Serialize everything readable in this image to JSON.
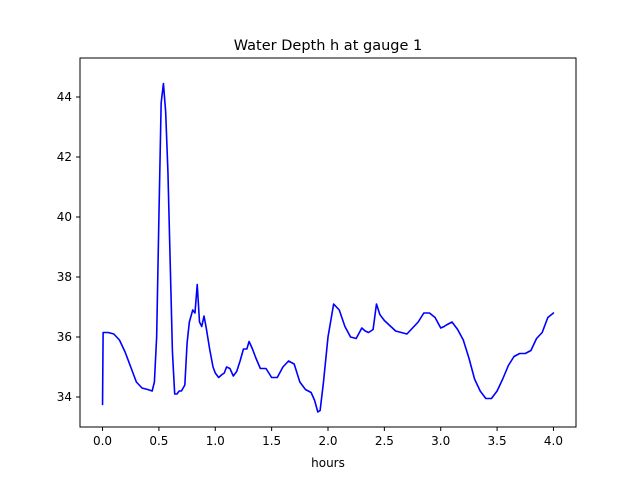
{
  "chart_data": {
    "type": "line",
    "title": "Water Depth h at gauge 1",
    "xlabel": "hours",
    "ylabel": "",
    "xlim": [
      -0.2,
      4.2
    ],
    "ylim": [
      33.0,
      45.3
    ],
    "xticks": [
      0.0,
      0.5,
      1.0,
      1.5,
      2.0,
      2.5,
      3.0,
      3.5,
      4.0
    ],
    "xtick_labels": [
      "0.0",
      "0.5",
      "1.0",
      "1.5",
      "2.0",
      "2.5",
      "3.0",
      "3.5",
      "4.0"
    ],
    "yticks": [
      34,
      36,
      38,
      40,
      42,
      44
    ],
    "ytick_labels": [
      "34",
      "36",
      "38",
      "40",
      "42",
      "44"
    ],
    "grid": false,
    "series": [
      {
        "color": "#0000ff",
        "x": [
          0.0,
          0.005,
          0.05,
          0.1,
          0.15,
          0.2,
          0.25,
          0.3,
          0.35,
          0.4,
          0.44,
          0.46,
          0.48,
          0.5,
          0.52,
          0.54,
          0.56,
          0.58,
          0.6,
          0.62,
          0.64,
          0.66,
          0.68,
          0.7,
          0.73,
          0.75,
          0.77,
          0.8,
          0.82,
          0.84,
          0.86,
          0.88,
          0.9,
          0.92,
          0.95,
          0.98,
          1.0,
          1.03,
          1.06,
          1.08,
          1.1,
          1.13,
          1.16,
          1.19,
          1.22,
          1.25,
          1.28,
          1.3,
          1.33,
          1.36,
          1.4,
          1.45,
          1.5,
          1.55,
          1.6,
          1.65,
          1.7,
          1.75,
          1.8,
          1.85,
          1.88,
          1.91,
          1.93,
          1.96,
          2.0,
          2.05,
          2.1,
          2.15,
          2.2,
          2.25,
          2.3,
          2.33,
          2.36,
          2.4,
          2.43,
          2.46,
          2.5,
          2.6,
          2.7,
          2.8,
          2.85,
          2.9,
          2.95,
          3.0,
          3.03,
          3.05,
          3.1,
          3.15,
          3.2,
          3.25,
          3.3,
          3.35,
          3.4,
          3.45,
          3.5,
          3.55,
          3.6,
          3.65,
          3.7,
          3.75,
          3.8,
          3.85,
          3.9,
          3.95,
          4.0
        ],
        "y": [
          33.75,
          36.15,
          36.15,
          36.1,
          35.9,
          35.5,
          35.0,
          34.5,
          34.3,
          34.25,
          34.2,
          34.5,
          36.0,
          40.0,
          43.8,
          44.45,
          43.5,
          41.5,
          38.5,
          35.5,
          34.1,
          34.1,
          34.2,
          34.2,
          34.4,
          35.8,
          36.5,
          36.9,
          36.8,
          37.75,
          36.5,
          36.35,
          36.7,
          36.3,
          35.6,
          35.0,
          34.8,
          34.65,
          34.75,
          34.8,
          35.0,
          34.95,
          34.7,
          34.85,
          35.2,
          35.6,
          35.6,
          35.85,
          35.6,
          35.3,
          34.95,
          34.95,
          34.65,
          34.65,
          35.0,
          35.2,
          35.1,
          34.5,
          34.25,
          34.15,
          33.9,
          33.5,
          33.55,
          34.5,
          36.0,
          37.1,
          36.9,
          36.35,
          36.0,
          35.95,
          36.3,
          36.2,
          36.15,
          36.25,
          37.1,
          36.75,
          36.55,
          36.2,
          36.1,
          36.5,
          36.8,
          36.8,
          36.65,
          36.3,
          36.35,
          36.4,
          36.5,
          36.25,
          35.9,
          35.3,
          34.6,
          34.2,
          33.95,
          33.95,
          34.2,
          34.6,
          35.05,
          35.35,
          35.45,
          35.45,
          35.55,
          35.95,
          36.15,
          36.65,
          36.8
        ]
      }
    ]
  }
}
